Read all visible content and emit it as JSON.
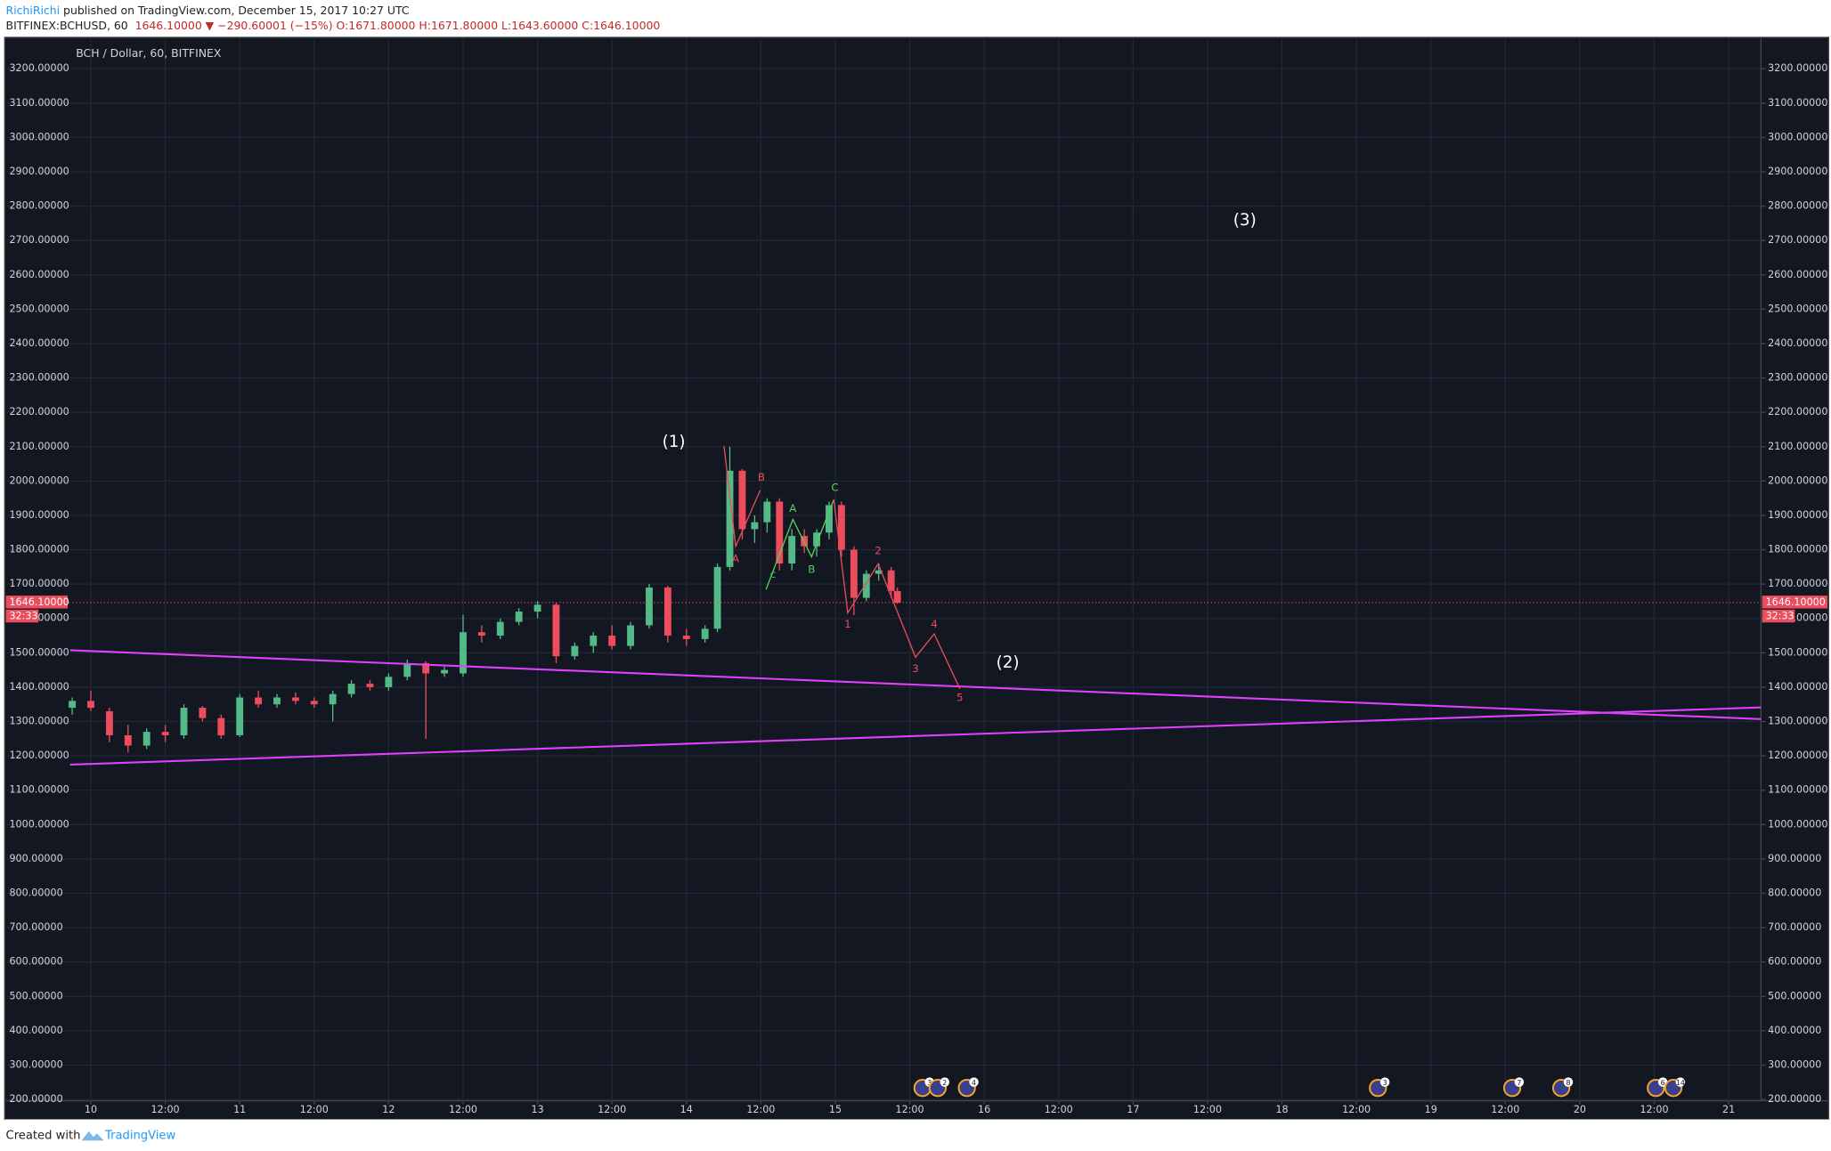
{
  "header": {
    "author": "RichiRichi",
    "published": "published on TradingView.com, December 15, 2017 10:27 UTC",
    "symbol": "BITFINEX:BCHUSD, 60",
    "price": "1646.10000",
    "change": "▼ −290.60001 (−15%)",
    "open": "O:1671.80000",
    "high": "H:1671.80000",
    "low": "L:1643.60000",
    "close": "C:1646.10000"
  },
  "footer": {
    "created": "Created with",
    "brand": "TradingView"
  },
  "chart_data": {
    "type": "candlestick",
    "x": [
      -3,
      0,
      3,
      6,
      9,
      12,
      15,
      18,
      21,
      24,
      27,
      30,
      33,
      36,
      39,
      42,
      45,
      48,
      51,
      54,
      57,
      60,
      63,
      66,
      69,
      72,
      75,
      78,
      81,
      84,
      87,
      90,
      93,
      96,
      99,
      101,
      103,
      105,
      107,
      109,
      111,
      113,
      115,
      117,
      119,
      121,
      123,
      125,
      127,
      129,
      130
    ],
    "series": [
      {
        "name": "BCH / Dollar, 60, BITFINEX",
        "up_color": "#53b987",
        "down_color": "#eb4d5c",
        "open": [
          1340,
          1360,
          1330,
          1260,
          1230,
          1270,
          1260,
          1340,
          1310,
          1260,
          1370,
          1350,
          1370,
          1360,
          1350,
          1380,
          1410,
          1400,
          1430,
          1470,
          1440,
          1440,
          1560,
          1550,
          1590,
          1620,
          1640,
          1490,
          1520,
          1550,
          1520,
          1580,
          1690,
          1550,
          1540,
          1570,
          1750,
          2030,
          1860,
          1880,
          1940,
          1760,
          1840,
          1810,
          1850,
          1930,
          1800,
          1660,
          1730,
          1740,
          1680
        ],
        "high": [
          1370,
          1390,
          1340,
          1290,
          1280,
          1290,
          1350,
          1345,
          1320,
          1380,
          1390,
          1380,
          1385,
          1370,
          1390,
          1420,
          1420,
          1440,
          1480,
          1475,
          1460,
          1610,
          1580,
          1600,
          1630,
          1650,
          1645,
          1530,
          1560,
          1580,
          1590,
          1700,
          1695,
          1570,
          1580,
          1760,
          2100,
          2035,
          1900,
          1950,
          1950,
          1860,
          1860,
          1860,
          1940,
          1940,
          1810,
          1740,
          1760,
          1750,
          1690
        ],
        "low": [
          1320,
          1330,
          1240,
          1210,
          1220,
          1240,
          1250,
          1300,
          1250,
          1255,
          1340,
          1340,
          1350,
          1340,
          1300,
          1370,
          1390,
          1390,
          1420,
          1250,
          1430,
          1430,
          1530,
          1540,
          1580,
          1600,
          1470,
          1480,
          1500,
          1510,
          1510,
          1570,
          1530,
          1520,
          1530,
          1560,
          1740,
          1830,
          1820,
          1850,
          1740,
          1740,
          1790,
          1780,
          1830,
          1780,
          1610,
          1650,
          1710,
          1660,
          1643
        ],
        "close": [
          1360,
          1340,
          1260,
          1230,
          1270,
          1260,
          1340,
          1310,
          1260,
          1370,
          1350,
          1370,
          1360,
          1350,
          1380,
          1410,
          1400,
          1430,
          1470,
          1440,
          1450,
          1560,
          1550,
          1590,
          1620,
          1640,
          1490,
          1520,
          1550,
          1520,
          1580,
          1690,
          1550,
          1540,
          1570,
          1750,
          2030,
          1860,
          1880,
          1940,
          1760,
          1840,
          1810,
          1850,
          1930,
          1800,
          1660,
          1730,
          1740,
          1680,
          1646
        ]
      }
    ],
    "xlim": [
      -13.7,
      269.2
    ],
    "xticks": [
      {
        "value": 0,
        "label": "10"
      },
      {
        "value": 12,
        "label": "12:00"
      },
      {
        "value": 24,
        "label": "11"
      },
      {
        "value": 36,
        "label": "12:00"
      },
      {
        "value": 48,
        "label": "12"
      },
      {
        "value": 60,
        "label": "12:00"
      },
      {
        "value": 72,
        "label": "13"
      },
      {
        "value": 84,
        "label": "12:00"
      },
      {
        "value": 96,
        "label": "14"
      },
      {
        "value": 108,
        "label": "12:00"
      },
      {
        "value": 120,
        "label": "15"
      },
      {
        "value": 132,
        "label": "12:00"
      },
      {
        "value": 144,
        "label": "16"
      },
      {
        "value": 156,
        "label": "12:00"
      },
      {
        "value": 168,
        "label": "17"
      },
      {
        "value": 180,
        "label": "12:00"
      },
      {
        "value": 192,
        "label": "18"
      },
      {
        "value": 204,
        "label": "12:00"
      },
      {
        "value": 216,
        "label": "19"
      },
      {
        "value": 228,
        "label": "12:00"
      },
      {
        "value": 240,
        "label": "20"
      },
      {
        "value": 252,
        "label": "12:00"
      },
      {
        "value": 264,
        "label": "21"
      }
    ],
    "ylim": [
      196,
      3288
    ],
    "yticks": [
      {
        "value": 200,
        "label": "200.00000"
      },
      {
        "value": 300,
        "label": "300.00000"
      },
      {
        "value": 400,
        "label": "400.00000"
      },
      {
        "value": 500,
        "label": "500.00000"
      },
      {
        "value": 600,
        "label": "600.00000"
      },
      {
        "value": 700,
        "label": "700.00000"
      },
      {
        "value": 800,
        "label": "800.00000"
      },
      {
        "value": 900,
        "label": "900.00000"
      },
      {
        "value": 1000,
        "label": "1000.00000"
      },
      {
        "value": 1100,
        "label": "1100.00000"
      },
      {
        "value": 1200,
        "label": "1200.00000"
      },
      {
        "value": 1300,
        "label": "1300.00000"
      },
      {
        "value": 1400,
        "label": "1400.00000"
      },
      {
        "value": 1500,
        "label": "1500.00000"
      },
      {
        "value": 1600,
        "label": "1600.00000"
      },
      {
        "value": 1700,
        "label": "1700.00000"
      },
      {
        "value": 1800,
        "label": "1800.00000"
      },
      {
        "value": 1900,
        "label": "1900.00000"
      },
      {
        "value": 2000,
        "label": "2000.00000"
      },
      {
        "value": 2100,
        "label": "2100.00000"
      },
      {
        "value": 2200,
        "label": "2200.00000"
      },
      {
        "value": 2300,
        "label": "2300.00000"
      },
      {
        "value": 2400,
        "label": "2400.00000"
      },
      {
        "value": 2500,
        "label": "2500.00000"
      },
      {
        "value": 2600,
        "label": "2600.00000"
      },
      {
        "value": 2700,
        "label": "2700.00000"
      },
      {
        "value": 2800,
        "label": "2800.00000"
      },
      {
        "value": 2900,
        "label": "2900.00000"
      },
      {
        "value": 3000,
        "label": "3000.00000"
      },
      {
        "value": 3100,
        "label": "3100.00000"
      },
      {
        "value": 3200,
        "label": "3200.00000"
      }
    ],
    "grid": true,
    "last_price": {
      "value": 1646.1,
      "label": "1646.10000",
      "color": "#eb4d5c"
    },
    "countdown": "32:33",
    "annotations": {
      "wave1": "(1)",
      "wave2": "(2)",
      "wave3": "(3)",
      "red": [
        "A",
        "B",
        "1",
        "2",
        "3",
        "4",
        "5"
      ],
      "green": [
        "C",
        "A",
        "B",
        "C"
      ]
    },
    "events": [
      "3",
      "2",
      "4",
      "3",
      "7",
      "8",
      "6",
      "14"
    ]
  }
}
